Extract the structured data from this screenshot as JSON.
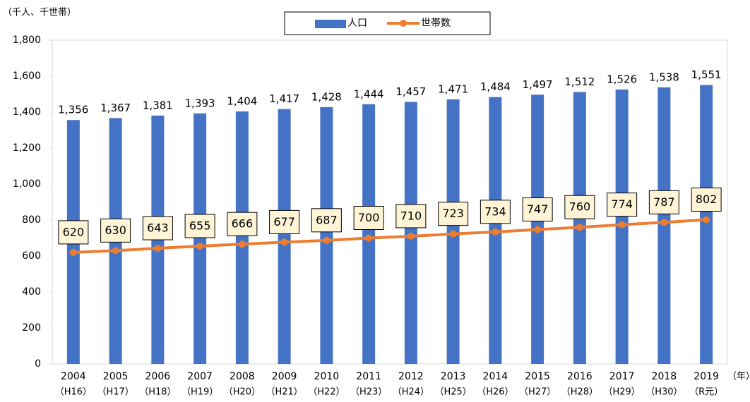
{
  "chart_data": {
    "type": "bar_line",
    "y_unit": "（千人、千世帯）",
    "x_unit": "（年）",
    "categories": [
      [
        "2004",
        "（H16）"
      ],
      [
        "2005",
        "（H17）"
      ],
      [
        "2006",
        "（H18）"
      ],
      [
        "2007",
        "（H19）"
      ],
      [
        "2008",
        "（H20）"
      ],
      [
        "2009",
        "（H21）"
      ],
      [
        "2010",
        "（H22）"
      ],
      [
        "2011",
        "（H23）"
      ],
      [
        "2012",
        "（H24）"
      ],
      [
        "2013",
        "（H25）"
      ],
      [
        "2014",
        "（H26）"
      ],
      [
        "2015",
        "（H27）"
      ],
      [
        "2016",
        "（H28）"
      ],
      [
        "2017",
        "（H29）"
      ],
      [
        "2018",
        "（H30）"
      ],
      [
        "2019",
        "（R元）"
      ]
    ],
    "series": [
      {
        "name": "人口",
        "type": "bar",
        "color": "#4472c4",
        "values": [
          1356,
          1367,
          1381,
          1393,
          1404,
          1417,
          1428,
          1444,
          1457,
          1471,
          1484,
          1497,
          1512,
          1526,
          1538,
          1551
        ],
        "value_labels": [
          "1,356",
          "1,367",
          "1,381",
          "1,393",
          "1,404",
          "1,417",
          "1,428",
          "1,444",
          "1,457",
          "1,471",
          "1,484",
          "1,497",
          "1,512",
          "1,526",
          "1,538",
          "1,551"
        ]
      },
      {
        "name": "世帯数",
        "type": "line",
        "color": "#ed7d31",
        "values": [
          620,
          630,
          643,
          655,
          666,
          677,
          687,
          700,
          710,
          723,
          734,
          747,
          760,
          774,
          787,
          802
        ]
      }
    ],
    "ylim": [
      0,
      1800
    ],
    "yticks": [
      0,
      200,
      400,
      600,
      800,
      {
        "value": 1000,
        "label": "1,000"
      },
      {
        "value": 1200,
        "label": "1,200"
      },
      {
        "value": 1400,
        "label": "1,400"
      },
      {
        "value": 1600,
        "label": "1,600"
      },
      {
        "value": 1800,
        "label": "1,800"
      }
    ],
    "legend": "top"
  }
}
